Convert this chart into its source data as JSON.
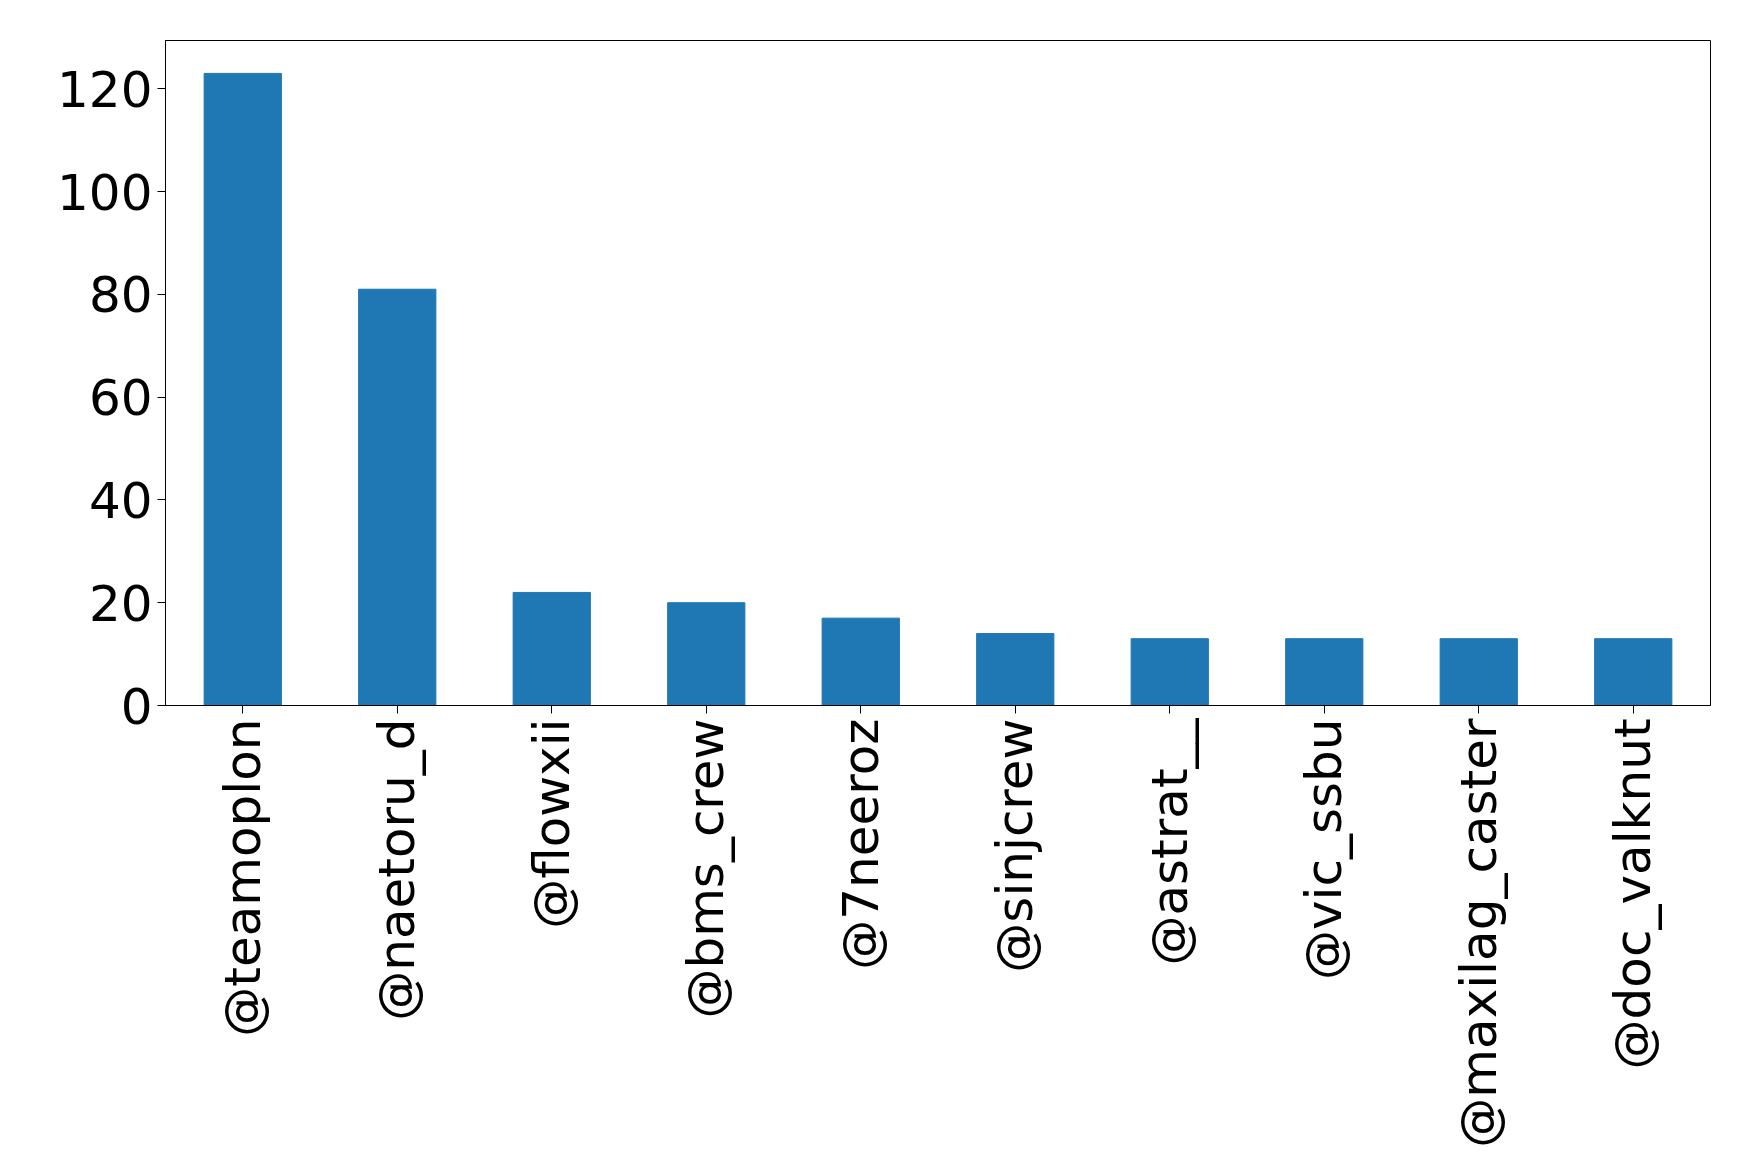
{
  "chart_data": {
    "type": "bar",
    "categories": [
      "@teamoplon",
      "@naetoru_d",
      "@flowxii",
      "@bms_crew",
      "@7neeroz",
      "@sinjcrew",
      "@astrat__",
      "@vic_ssbu",
      "@maxilag_caster",
      "@doc_valknut"
    ],
    "values": [
      123,
      81,
      22,
      20,
      17,
      14,
      13,
      13,
      13,
      13
    ],
    "color": "#1f77b4",
    "ylim": [
      0,
      129.4
    ],
    "yticks": [
      0,
      20,
      40,
      60,
      80,
      100,
      120
    ]
  }
}
